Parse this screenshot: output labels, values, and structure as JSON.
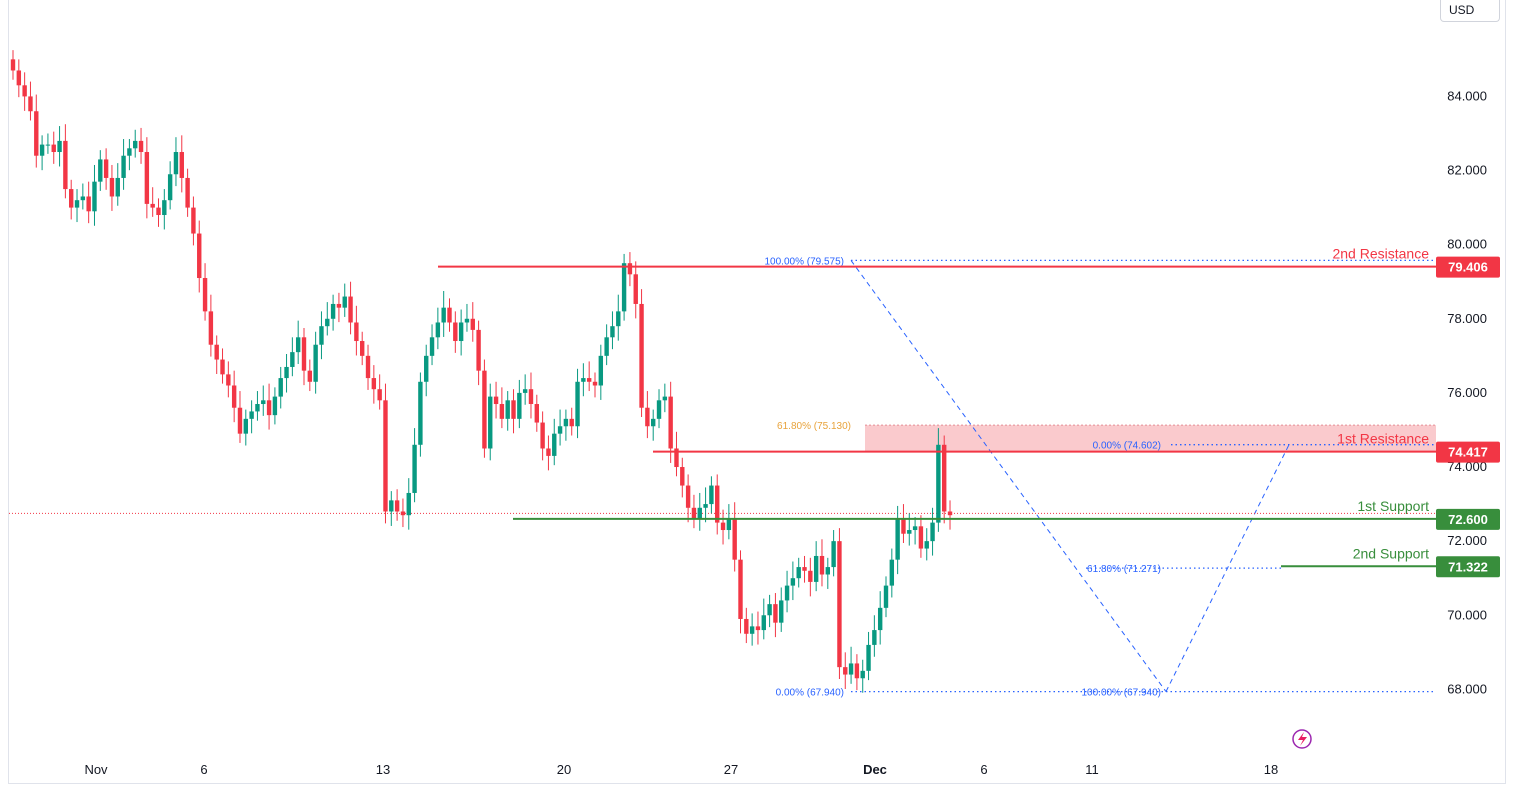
{
  "chart_data": {
    "type": "candlestick",
    "currency": "USD",
    "y_range": [
      67.0,
      86.0
    ],
    "y_ticks": [
      "84.000",
      "82.000",
      "80.000",
      "78.000",
      "76.000",
      "74.000",
      "72.000",
      "70.000",
      "68.000"
    ],
    "x_ticks": [
      "Nov",
      "6",
      "13",
      "20",
      "27",
      "Dec",
      "6",
      "11",
      "18"
    ],
    "current_price": 72.75,
    "levels": [
      {
        "name": "2nd Resistance",
        "value": "79.406",
        "color": "#f23645"
      },
      {
        "name": "1st Resistance",
        "value": "74.417",
        "color": "#f23645"
      },
      {
        "name": "1st Support",
        "value": "72.600",
        "color": "#388e3c"
      },
      {
        "name": "2nd Support",
        "value": "71.322",
        "color": "#388e3c"
      }
    ],
    "resistance_zone": [
      74.417,
      75.13
    ],
    "fib_labels": [
      {
        "text": "100.00% (79.575)",
        "value": 79.575
      },
      {
        "text": "0.00% (74.602)",
        "value": 74.602
      },
      {
        "text": "61.80% (75.130)",
        "value": 75.13
      },
      {
        "text": "61.80% (71.271)",
        "value": 71.271
      },
      {
        "text": "0.00% (67.940)",
        "value": 67.94
      },
      {
        "text": "100.00% (67.940)",
        "value": 67.94
      }
    ],
    "closes": [
      84.7,
      84.3,
      84.0,
      83.6,
      82.4,
      82.7,
      82.7,
      82.5,
      82.8,
      81.5,
      81.0,
      81.2,
      81.3,
      80.9,
      81.7,
      82.3,
      81.8,
      81.3,
      81.8,
      82.4,
      82.6,
      82.8,
      82.5,
      81.1,
      81.0,
      80.8,
      81.2,
      81.9,
      82.5,
      81.8,
      81.0,
      80.3,
      79.1,
      78.2,
      77.3,
      76.9,
      76.5,
      76.2,
      75.6,
      74.9,
      75.3,
      75.5,
      75.7,
      75.8,
      75.4,
      75.9,
      76.4,
      76.7,
      77.1,
      77.5,
      76.6,
      76.3,
      77.3,
      77.8,
      78.0,
      78.4,
      78.3,
      78.6,
      77.9,
      77.4,
      77.0,
      76.4,
      76.1,
      75.8,
      72.8,
      73.1,
      72.8,
      72.7,
      73.3,
      74.6,
      76.3,
      77.0,
      77.5,
      77.9,
      78.3,
      77.9,
      77.4,
      77.9,
      78.0,
      77.7,
      76.6,
      74.5,
      75.9,
      75.7,
      75.3,
      75.8,
      75.3,
      76.0,
      76.1,
      75.7,
      75.2,
      74.5,
      74.3,
      74.9,
      75.1,
      75.3,
      75.1,
      76.3,
      76.4,
      76.3,
      76.2,
      77.0,
      77.5,
      77.8,
      78.2,
      79.5,
      79.2,
      78.4,
      75.6,
      75.1,
      75.3,
      75.8,
      75.9,
      74.5,
      74.0,
      73.5,
      72.9,
      72.6,
      72.9,
      73.0,
      73.5,
      72.5,
      72.3,
      72.6,
      71.5,
      69.9,
      69.5,
      69.7,
      69.6,
      70.0,
      70.3,
      69.8,
      70.4,
      70.8,
      71.0,
      71.3,
      71.2,
      70.9,
      71.6,
      71.1,
      71.3,
      72.0,
      68.6,
      68.4,
      68.7,
      68.3,
      68.5,
      69.2,
      69.6,
      70.2,
      70.8,
      71.5,
      72.6,
      72.2,
      72.3,
      72.4,
      71.8,
      72.0,
      72.5,
      74.6,
      72.8,
      72.7
    ]
  }
}
